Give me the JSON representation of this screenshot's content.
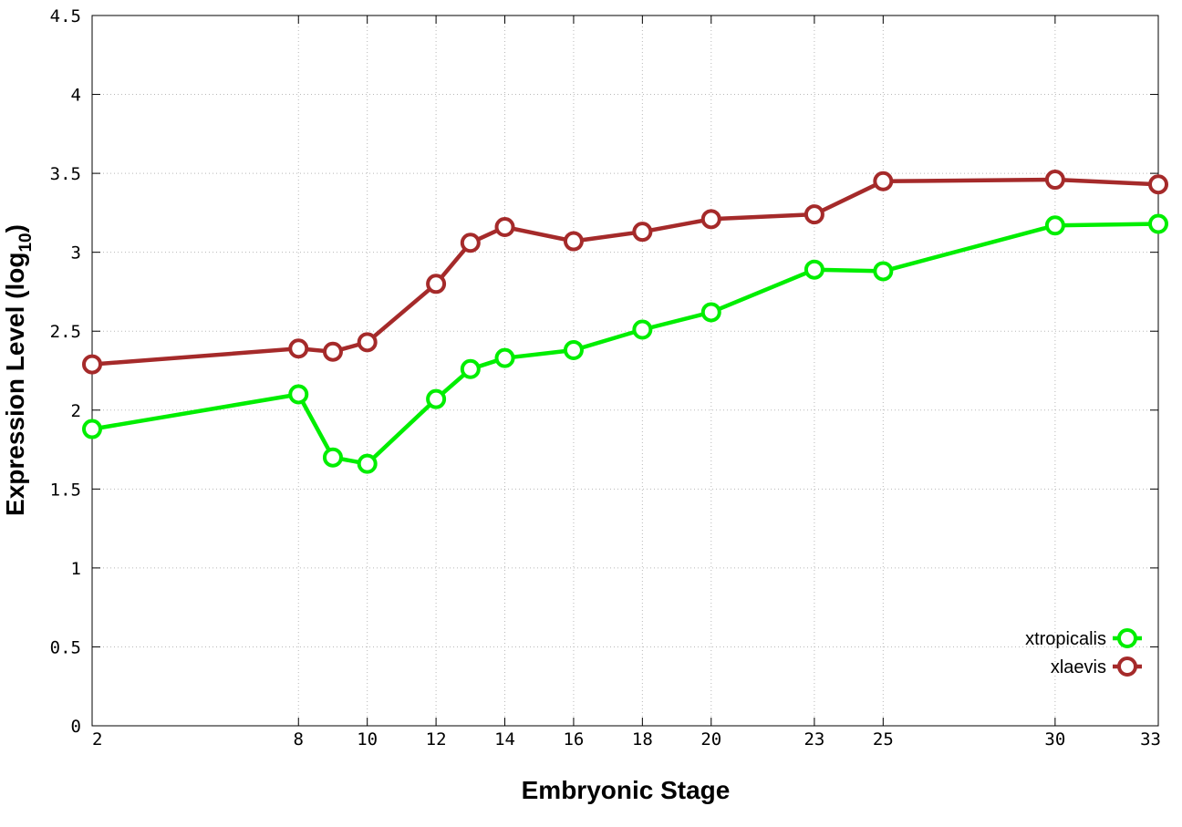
{
  "chart_data": {
    "type": "line",
    "xlabel": "Embryonic Stage",
    "ylabel": "Expression Level (log",
    "ylabel_subscript": "10",
    "ylabel_close": ")",
    "x_ticks": [
      2,
      8,
      10,
      12,
      14,
      16,
      18,
      20,
      23,
      25,
      30,
      33
    ],
    "y_ticks": [
      {
        "value": 0,
        "label": "0"
      },
      {
        "value": 0.5,
        "label": "0.5"
      },
      {
        "value": 1,
        "label": "1"
      },
      {
        "value": 1.5,
        "label": "1.5"
      },
      {
        "value": 2,
        "label": "2"
      },
      {
        "value": 2.5,
        "label": "2.5"
      },
      {
        "value": 3,
        "label": "3"
      },
      {
        "value": 3.5,
        "label": "3.5"
      },
      {
        "value": 4,
        "label": "4"
      },
      {
        "value": 4.5,
        "label": "4.5"
      }
    ],
    "xlim": [
      2,
      33
    ],
    "ylim": [
      0,
      4.5
    ],
    "grid": true,
    "legend_position": "bottom-right",
    "x": [
      2,
      8,
      9,
      10,
      12,
      13,
      14,
      16,
      18,
      20,
      23,
      25,
      30,
      33
    ],
    "series": [
      {
        "name": "xtropicalis",
        "color": "#00ee00",
        "values": [
          1.88,
          2.1,
          1.7,
          1.66,
          2.07,
          2.26,
          2.33,
          2.38,
          2.51,
          2.62,
          2.89,
          2.88,
          3.17,
          3.18
        ]
      },
      {
        "name": "xlaevis",
        "color": "#a52a2a",
        "values": [
          2.29,
          2.39,
          2.37,
          2.43,
          2.8,
          3.06,
          3.16,
          3.07,
          3.13,
          3.21,
          3.24,
          3.45,
          3.46,
          3.43
        ]
      }
    ]
  }
}
